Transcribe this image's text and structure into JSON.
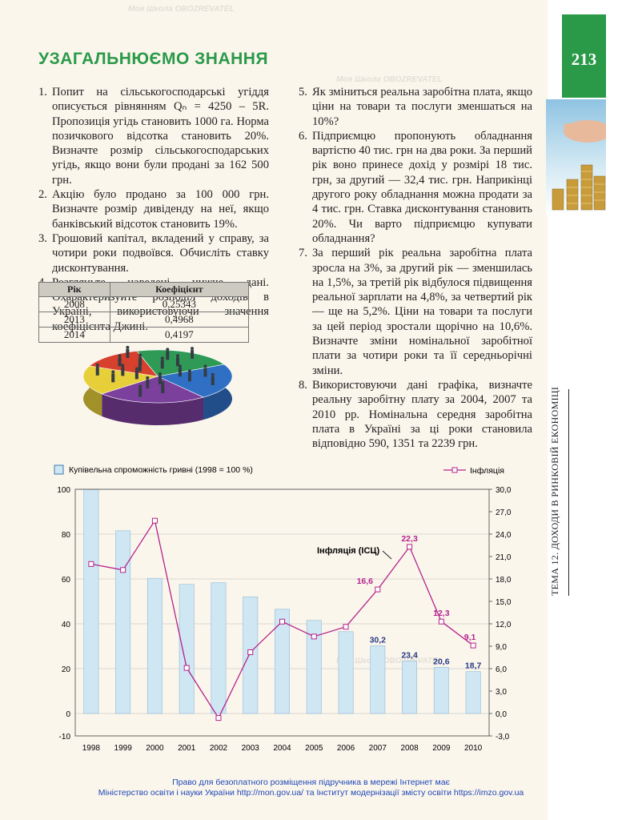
{
  "page_number": "213",
  "side_title": "ТЕМА 12. ДОХОДИ В РИНКОВІЙ ЕКОНОМІЦІ",
  "heading": "УЗАГАЛЬНЮЄМО ЗНАННЯ",
  "left_tasks": [
    {
      "num": "1.",
      "text": "Попит на сільськогосподарські угіддя описується рівнянням Qₙ = 4250 – 5R. Пропозиція угідь становить 1000 га. Норма позичкового відсотка становить 20%. Визначте розмір сільськогосподарських угідь, якщо вони були продані за 162 500 грн."
    },
    {
      "num": "2.",
      "text": "Акцію було продано за 100 000 грн. Визначте розмір дивіденду на неї, якщо банківський відсоток становить 19%."
    },
    {
      "num": "3.",
      "text": "Грошовий капітал, вкладений у справу, за чотири роки подвоївся. Обчисліть ставку дисконтування."
    },
    {
      "num": "4.",
      "text": "Розгляньте наведені нижче дані. Охарактеризуйте розподіл доходів в Україні, використовуючи значення коефіцієнта Джині."
    }
  ],
  "right_tasks": [
    {
      "num": "5.",
      "text": "Як зміниться реальна заробітна плата, якщо ціни на товари та послуги зменшаться на 10%?"
    },
    {
      "num": "6.",
      "text": "Підприємцю пропонують обладнання вартістю 40 тис. грн на два роки. За перший рік воно принесе дохід у розмірі 18 тис. грн, за другий — 32,4 тис. грн. Наприкінці другого року обладнання можна продати за 4 тис. грн. Ставка дисконтування становить 20%. Чи варто підприємцю купувати обладнання?"
    },
    {
      "num": "7.",
      "text": "За перший рік реальна заробітна плата зросла на 3%, за другий рік — зменшилась на 1,5%, за третій рік відбулося підвищення реальної зарплати на 4,8%, за четвертий рік — ще на 5,2%. Ціни на товари та послуги за цей період зростали щорічно на 10,6%. Визначте зміни номінальної заробітної плати за чотири роки та її середньорічні зміни."
    },
    {
      "num": "8.",
      "text": "Використовуючи дані графіка, визначте реальну заробітну плату за 2004, 2007 та 2010 рр. Номінальна середня заробітна плата в Україні за ці роки становила відповідно 590, 1351 та 2239 грн."
    }
  ],
  "gini_table": {
    "headers": [
      "Рік",
      "Коефіцієнт"
    ],
    "rows": [
      [
        "2008",
        "0,25343"
      ],
      [
        "2013",
        "0,4968"
      ],
      [
        "2014",
        "0,4197"
      ]
    ]
  },
  "pie_colors": [
    "#2f6fc4",
    "#7b3f9c",
    "#e7cf3a",
    "#d8402e",
    "#2f9a56"
  ],
  "chart_data": {
    "type": "bar",
    "categories": [
      "1998",
      "1999",
      "2000",
      "2001",
      "2002",
      "2003",
      "2004",
      "2005",
      "2006",
      "2007",
      "2008",
      "2009",
      "2010"
    ],
    "series": [
      {
        "name": "Купівельна спроможність гривні (1998 = 100 %)",
        "type": "bar",
        "axis": "left",
        "values": [
          100,
          81.5,
          60.3,
          57.6,
          58.3,
          52,
          46.5,
          41.5,
          36.5,
          30.2,
          23.4,
          20.6,
          18.7
        ]
      },
      {
        "name": "Інфляція",
        "type": "line",
        "axis": "right",
        "values": [
          20,
          19.2,
          25.8,
          6.1,
          -0.6,
          8.2,
          12.3,
          10.3,
          11.6,
          16.6,
          22.3,
          12.3,
          9.1
        ]
      }
    ],
    "bar_labels": {
      "9": "30,2",
      "10": "23,4",
      "11": "20,6",
      "12": "18,7"
    },
    "line_labels": {
      "9": "16,6",
      "10": "22,3",
      "11": "12,3",
      "12": "9,1"
    },
    "left_axis": {
      "ylim": [
        -10,
        100
      ],
      "ticks": [
        "100",
        "80",
        "60",
        "40",
        "20",
        "0",
        "-10"
      ],
      "tick_values": [
        100,
        80,
        60,
        40,
        20,
        0,
        -10
      ]
    },
    "right_axis": {
      "ylim": [
        -3,
        30
      ],
      "ticks": [
        "30,0",
        "27,0",
        "24,0",
        "21,0",
        "18,0",
        "15,0",
        "12,0",
        "9,0",
        "6,0",
        "3,0",
        "0,0",
        "-3,0"
      ],
      "tick_values": [
        30,
        27,
        24,
        21,
        18,
        15,
        12,
        9,
        6,
        3,
        0,
        -3
      ]
    },
    "annotation": "Інфляція (ІСЦ)",
    "bar_color": "#cfe6f3",
    "line_color": "#b4238c"
  },
  "footer": {
    "line1": "Право для безоплатного розміщення підручника в мережі Інтернет має",
    "line2": "Міністерство освіти і науки України http://mon.gov.ua/ та Інститут модернізації змісту освіти https://imzo.gov.ua"
  },
  "watermark_text": "Моя Школа  OBOZREVATEL"
}
